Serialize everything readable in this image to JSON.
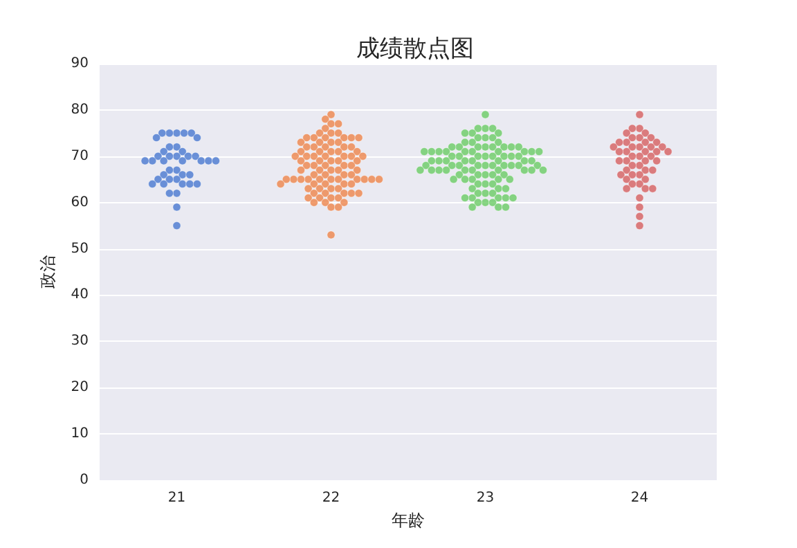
{
  "chart_data": {
    "type": "scatter",
    "title": "成绩散点图",
    "xlabel": "年龄",
    "ylabel": "政治",
    "categories": [
      "21",
      "22",
      "23",
      "24"
    ],
    "ylim": [
      0,
      90
    ],
    "yticks": [
      0,
      10,
      20,
      30,
      40,
      50,
      60,
      70,
      80,
      90
    ],
    "grid": "y",
    "marker": "circle",
    "series": [
      {
        "color": "#4878d0",
        "x": [
          "21",
          "21",
          "21",
          "21",
          "21",
          "21",
          "21",
          "21",
          "21",
          "21",
          "21",
          "21",
          "21",
          "21",
          "21",
          "21",
          "21",
          "21",
          "21",
          "21",
          "21",
          "21",
          "21",
          "21",
          "21",
          "21",
          "21",
          "21",
          "21",
          "21",
          "21",
          "21",
          "21",
          "21",
          "21",
          "21",
          "21",
          "21",
          "21",
          "21"
        ],
        "values": [
          75,
          75,
          75,
          75,
          75,
          74,
          74,
          72,
          72,
          71,
          71,
          70,
          70,
          70,
          70,
          70,
          69,
          69,
          69,
          69,
          69,
          69,
          69,
          67,
          67,
          66,
          66,
          66,
          65,
          65,
          65,
          64,
          64,
          64,
          64,
          64,
          62,
          62,
          59,
          55
        ]
      },
      {
        "color": "#ee854a",
        "x": [
          "22",
          "22",
          "22",
          "22",
          "22",
          "22",
          "22",
          "22",
          "22",
          "22",
          "22",
          "22",
          "22",
          "22",
          "22",
          "22",
          "22",
          "22",
          "22",
          "22",
          "22",
          "22",
          "22",
          "22",
          "22",
          "22",
          "22",
          "22",
          "22",
          "22",
          "22",
          "22",
          "22",
          "22",
          "22",
          "22",
          "22",
          "22",
          "22",
          "22",
          "22",
          "22",
          "22",
          "22",
          "22",
          "22",
          "22",
          "22",
          "22",
          "22",
          "22",
          "22",
          "22",
          "22",
          "22",
          "22",
          "22",
          "22",
          "22",
          "22",
          "22",
          "22",
          "22",
          "22",
          "22",
          "22",
          "22",
          "22",
          "22",
          "22",
          "22",
          "22",
          "22",
          "22",
          "22",
          "22",
          "22",
          "22",
          "22",
          "22",
          "22",
          "22",
          "22",
          "22",
          "22",
          "22",
          "22",
          "22",
          "22"
        ],
        "values": [
          79,
          78,
          77,
          77,
          76,
          75,
          75,
          75,
          74,
          74,
          74,
          74,
          74,
          74,
          73,
          73,
          73,
          73,
          72,
          72,
          72,
          72,
          72,
          71,
          71,
          71,
          71,
          71,
          70,
          70,
          70,
          70,
          70,
          70,
          70,
          69,
          69,
          69,
          69,
          69,
          68,
          68,
          68,
          68,
          68,
          67,
          67,
          67,
          67,
          67,
          66,
          66,
          66,
          66,
          65,
          65,
          65,
          65,
          65,
          65,
          65,
          65,
          65,
          65,
          65,
          64,
          64,
          64,
          64,
          64,
          63,
          63,
          63,
          63,
          62,
          62,
          62,
          62,
          62,
          61,
          61,
          61,
          61,
          60,
          60,
          60,
          59,
          59,
          53
        ]
      },
      {
        "color": "#6acc64",
        "x": [
          "23",
          "23",
          "23",
          "23",
          "23",
          "23",
          "23",
          "23",
          "23",
          "23",
          "23",
          "23",
          "23",
          "23",
          "23",
          "23",
          "23",
          "23",
          "23",
          "23",
          "23",
          "23",
          "23",
          "23",
          "23",
          "23",
          "23",
          "23",
          "23",
          "23",
          "23",
          "23",
          "23",
          "23",
          "23",
          "23",
          "23",
          "23",
          "23",
          "23",
          "23",
          "23",
          "23",
          "23",
          "23",
          "23",
          "23",
          "23",
          "23",
          "23",
          "23",
          "23",
          "23",
          "23",
          "23",
          "23",
          "23",
          "23",
          "23",
          "23",
          "23",
          "23",
          "23",
          "23",
          "23",
          "23",
          "23",
          "23",
          "23",
          "23",
          "23",
          "23",
          "23",
          "23",
          "23",
          "23",
          "23",
          "23",
          "23",
          "23",
          "23",
          "23",
          "23",
          "23",
          "23",
          "23",
          "23",
          "23",
          "23",
          "23",
          "23",
          "23",
          "23",
          "23",
          "23",
          "23",
          "23"
        ],
        "values": [
          79,
          76,
          76,
          76,
          75,
          75,
          75,
          74,
          74,
          74,
          73,
          73,
          73,
          72,
          72,
          72,
          72,
          72,
          72,
          72,
          72,
          71,
          71,
          71,
          71,
          71,
          71,
          71,
          71,
          71,
          71,
          70,
          70,
          70,
          70,
          70,
          70,
          70,
          70,
          69,
          69,
          69,
          69,
          69,
          69,
          69,
          69,
          68,
          68,
          68,
          68,
          68,
          68,
          68,
          68,
          68,
          68,
          67,
          67,
          67,
          67,
          67,
          67,
          67,
          67,
          67,
          67,
          66,
          66,
          66,
          66,
          66,
          65,
          65,
          65,
          65,
          65,
          64,
          64,
          64,
          63,
          63,
          63,
          62,
          62,
          62,
          61,
          61,
          61,
          61,
          61,
          60,
          60,
          60,
          59,
          59,
          59
        ]
      },
      {
        "color": "#d65f5f",
        "x": [
          "24",
          "24",
          "24",
          "24",
          "24",
          "24",
          "24",
          "24",
          "24",
          "24",
          "24",
          "24",
          "24",
          "24",
          "24",
          "24",
          "24",
          "24",
          "24",
          "24",
          "24",
          "24",
          "24",
          "24",
          "24",
          "24",
          "24",
          "24",
          "24",
          "24",
          "24",
          "24",
          "24",
          "24",
          "24",
          "24",
          "24",
          "24",
          "24",
          "24",
          "24",
          "24",
          "24",
          "24",
          "24",
          "24",
          "24",
          "24"
        ],
        "values": [
          79,
          76,
          76,
          75,
          75,
          74,
          74,
          74,
          73,
          73,
          73,
          73,
          72,
          72,
          72,
          72,
          72,
          71,
          71,
          71,
          71,
          71,
          70,
          70,
          70,
          69,
          69,
          69,
          69,
          68,
          68,
          67,
          67,
          67,
          66,
          66,
          66,
          65,
          65,
          64,
          64,
          63,
          63,
          63,
          61,
          59,
          57,
          55
        ]
      }
    ]
  }
}
